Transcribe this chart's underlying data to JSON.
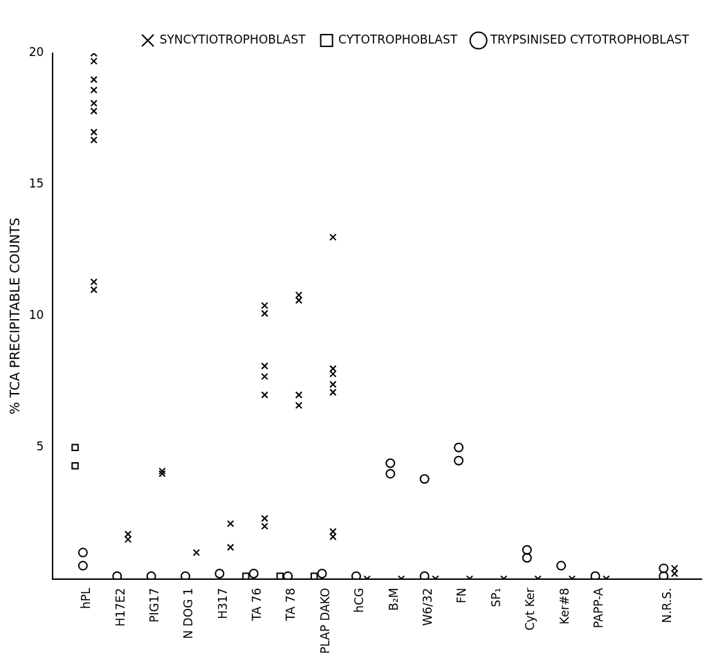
{
  "chart_data": {
    "type": "scatter",
    "ylabel": "% TCA PRECIPITABLE COUNTS",
    "categories": [
      "hPL",
      "H17E2",
      "PIG17",
      "N DOG 1",
      "H317",
      "TA 76",
      "TA 78",
      "PLAP DAKO",
      "hCG",
      "B₂M",
      "W6/32",
      "FN",
      "SP₁",
      "Cyt Ker",
      "Ker#8",
      "PAPP-A",
      null,
      "N.R.S.",
      null
    ],
    "ylim": [
      0,
      20
    ],
    "yticks": [
      5,
      10,
      15,
      20
    ],
    "grid": false,
    "legend": "top right",
    "series": [
      {
        "name": "SYNCYTIOTROPHOBLAST",
        "color": "#000000",
        "marker": "cross",
        "x": [
          "hPL",
          "hPL",
          "hPL",
          "hPL",
          "hPL",
          "hPL",
          "hPL",
          "hPL",
          "hPL",
          "hPL",
          "H17E2",
          "H17E2",
          "PIG17",
          "PIG17",
          "N DOG 1",
          "H317",
          "H317",
          "TA 76",
          "TA 76",
          "TA 76",
          "TA 76",
          "TA 76",
          "TA 76",
          "TA 76",
          "TA 78",
          "TA 78",
          "TA 78",
          "TA 78",
          "PLAP DAKO",
          "PLAP DAKO",
          "PLAP DAKO",
          "PLAP DAKO",
          "PLAP DAKO",
          "PLAP DAKO",
          "PLAP DAKO",
          "hCG",
          "B₂M",
          "W6/32",
          "FN",
          "SP₁",
          "Cyt Ker",
          "Ker#8",
          "PAPP-A",
          "N.R.S.",
          "N.R.S."
        ],
        "values": [
          20,
          19.7,
          19,
          18.6,
          18.1,
          17.8,
          17,
          16.7,
          11.3,
          11,
          1.7,
          1.5,
          4.1,
          4,
          1,
          2.1,
          1.2,
          10.4,
          10.1,
          8.1,
          7.7,
          7,
          2.3,
          2,
          10.8,
          10.6,
          7,
          6.6,
          13,
          8,
          7.8,
          7.4,
          7.1,
          1.8,
          1.6,
          0,
          0,
          0,
          0,
          0,
          0,
          0,
          0,
          0.4,
          0.2
        ]
      },
      {
        "name": "CYTOTROPHOBLAST",
        "color": "#000000",
        "marker": "square",
        "x": [
          "hPL",
          "hPL",
          "TA 76",
          "TA 78",
          "PLAP DAKO"
        ],
        "values": [
          5,
          4.3,
          0.1,
          0.1,
          0.1
        ]
      },
      {
        "name": "TRYPSINISED CYTOTROPHOBLAST",
        "color": "#000000",
        "marker": "circle",
        "x": [
          "hPL",
          "hPL",
          "H17E2",
          "PIG17",
          "N DOG 1",
          "H317",
          "TA 76",
          "TA 78",
          "PLAP DAKO",
          "hCG",
          "B₂M",
          "B₂M",
          "W6/32",
          "W6/32",
          "FN",
          "FN",
          "Cyt Ker",
          "Cyt Ker",
          "Ker#8",
          "PAPP-A",
          "N.R.S.",
          "N.R.S."
        ],
        "values": [
          1,
          0.5,
          0.1,
          0.1,
          0.1,
          0.2,
          0.2,
          0.1,
          0.2,
          0.1,
          4.4,
          4,
          3.8,
          0.1,
          5,
          4.5,
          1.1,
          0.8,
          0.5,
          0.1,
          0.4,
          0.1
        ]
      }
    ]
  }
}
